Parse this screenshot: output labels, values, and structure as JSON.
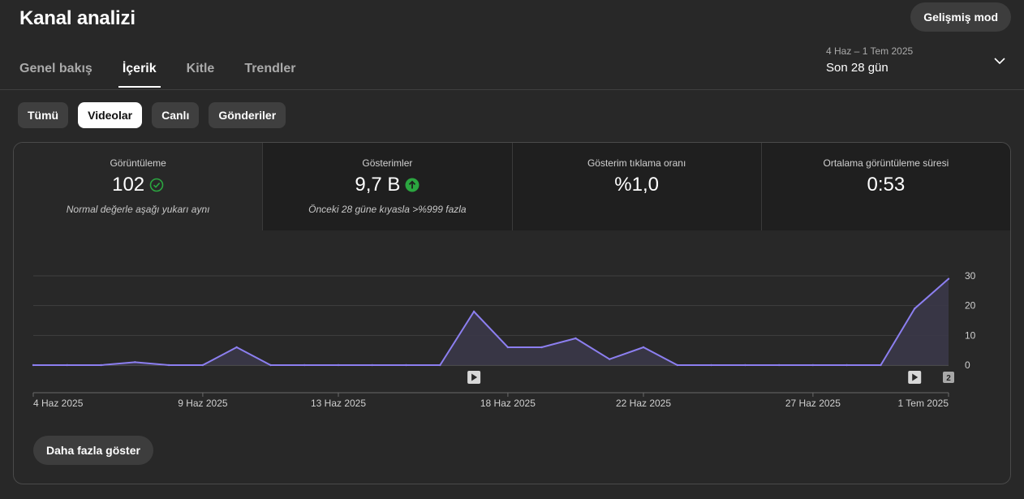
{
  "header": {
    "title": "Kanal analizi",
    "advanced_mode": "Gelişmiş mod"
  },
  "tabs": [
    {
      "label": "Genel bakış",
      "active": false
    },
    {
      "label": "İçerik",
      "active": true
    },
    {
      "label": "Kitle",
      "active": false
    },
    {
      "label": "Trendler",
      "active": false
    }
  ],
  "date_range": {
    "dates": "4 Haz – 1 Tem 2025",
    "label": "Son 28 gün",
    "icon": "chevron-down-icon"
  },
  "filters": [
    {
      "label": "Tümü",
      "active": false
    },
    {
      "label": "Videolar",
      "active": true
    },
    {
      "label": "Canlı",
      "active": false
    },
    {
      "label": "Gönderiler",
      "active": false
    }
  ],
  "metrics": [
    {
      "name": "Görüntüleme",
      "value": "102",
      "icon": "check-circle-icon",
      "note": "Normal değerle aşağı yukarı aynı"
    },
    {
      "name": "Gösterimler",
      "value": "9,7 B",
      "icon": "arrow-up-circle-icon",
      "note": "Önceki 28 güne kıyasla >%999 fazla"
    },
    {
      "name": "Gösterim tıklama oranı",
      "value": "%1,0"
    },
    {
      "name": "Ortalama görüntüleme süresi",
      "value": "0:53"
    }
  ],
  "colors": {
    "line": "#8c7ff0",
    "area": "#3a3748",
    "check": "#2ba640"
  },
  "chart_data": {
    "type": "area",
    "x": [
      "4 Haz",
      "5 Haz",
      "6 Haz",
      "7 Haz",
      "8 Haz",
      "9 Haz",
      "10 Haz",
      "11 Haz",
      "12 Haz",
      "13 Haz",
      "14 Haz",
      "15 Haz",
      "16 Haz",
      "17 Haz",
      "18 Haz",
      "19 Haz",
      "20 Haz",
      "21 Haz",
      "22 Haz",
      "23 Haz",
      "24 Haz",
      "25 Haz",
      "26 Haz",
      "27 Haz",
      "28 Haz",
      "29 Haz",
      "30 Haz",
      "1 Tem"
    ],
    "series": [
      {
        "values": [
          0,
          0,
          0,
          1,
          0,
          0,
          6,
          0,
          0,
          0,
          0,
          0,
          0,
          18,
          6,
          6,
          9,
          2,
          6,
          0,
          0,
          0,
          0,
          0,
          0,
          0,
          19,
          29
        ]
      }
    ],
    "ylim": [
      0,
      30
    ],
    "yticks": [
      "0",
      "10",
      "20",
      "30"
    ],
    "xtick_labels": [
      {
        "index": 0,
        "label": "4 Haz 2025"
      },
      {
        "index": 5,
        "label": "9 Haz 2025"
      },
      {
        "index": 9,
        "label": "13 Haz 2025"
      },
      {
        "index": 14,
        "label": "18 Haz 2025"
      },
      {
        "index": 18,
        "label": "22 Haz 2025"
      },
      {
        "index": 23,
        "label": "27 Haz 2025"
      },
      {
        "index": 27,
        "label": "1 Tem 2025"
      }
    ],
    "markers": [
      {
        "index": 13,
        "icon": "play-icon"
      },
      {
        "index": 26,
        "icon": "play-icon"
      },
      {
        "index": 27,
        "label": "2"
      }
    ],
    "grid": true
  },
  "footer": {
    "show_more": "Daha fazla göster"
  }
}
